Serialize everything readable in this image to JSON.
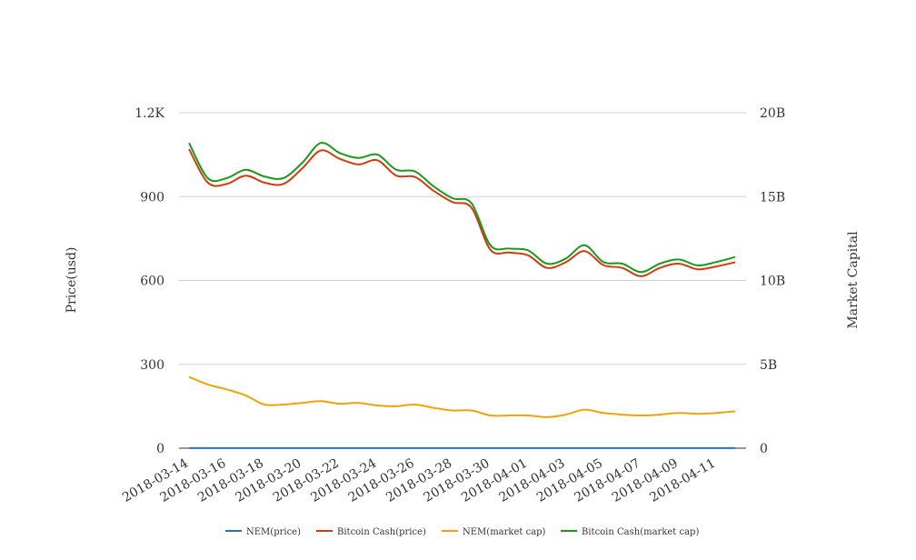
{
  "chart_data": {
    "type": "line",
    "title": "",
    "x": [
      "2018-03-14",
      "2018-03-15",
      "2018-03-16",
      "2018-03-17",
      "2018-03-18",
      "2018-03-19",
      "2018-03-20",
      "2018-03-21",
      "2018-03-22",
      "2018-03-23",
      "2018-03-24",
      "2018-03-25",
      "2018-03-26",
      "2018-03-27",
      "2018-03-28",
      "2018-03-29",
      "2018-03-30",
      "2018-03-31",
      "2018-04-01",
      "2018-04-02",
      "2018-04-03",
      "2018-04-04",
      "2018-04-05",
      "2018-04-06",
      "2018-04-07",
      "2018-04-08",
      "2018-04-09",
      "2018-04-10",
      "2018-04-11",
      "2018-04-12"
    ],
    "x_tick_labels": [
      "2018-03-14",
      "2018-03-16",
      "2018-03-18",
      "2018-03-20",
      "2018-03-22",
      "2018-03-24",
      "2018-03-26",
      "2018-03-28",
      "2018-03-30",
      "2018-04-01",
      "2018-04-03",
      "2018-04-05",
      "2018-04-07",
      "2018-04-09",
      "2018-04-11"
    ],
    "y_left": {
      "label": "Price(usd)",
      "range": [
        0,
        1200
      ],
      "ticks": [
        0,
        300,
        600,
        900,
        1200
      ],
      "tick_labels": [
        "0",
        "300",
        "600",
        "900",
        "1.2K"
      ]
    },
    "y_right": {
      "label": "Market Capital",
      "range": [
        0,
        20000000000
      ],
      "ticks": [
        0,
        5000000000,
        10000000000,
        15000000000,
        20000000000
      ],
      "tick_labels": [
        "0",
        "5B",
        "10B",
        "15B",
        "20B"
      ]
    },
    "grid": true,
    "legend_position": "bottom",
    "series": [
      {
        "name": "NEM(price)",
        "axis": "left",
        "color": "#2f6fb5",
        "values": [
          0.39,
          0.37,
          0.36,
          0.35,
          0.33,
          0.3,
          0.31,
          0.32,
          0.31,
          0.3,
          0.29,
          0.29,
          0.3,
          0.28,
          0.27,
          0.27,
          0.23,
          0.23,
          0.23,
          0.22,
          0.24,
          0.28,
          0.25,
          0.24,
          0.24,
          0.24,
          0.25,
          0.25,
          0.25,
          0.26
        ]
      },
      {
        "name": "Bitcoin Cash(price)",
        "axis": "left",
        "color": "#d13b12",
        "values": [
          1070,
          950,
          945,
          975,
          950,
          945,
          1000,
          1065,
          1035,
          1015,
          1030,
          975,
          970,
          920,
          880,
          860,
          710,
          700,
          690,
          645,
          665,
          705,
          655,
          645,
          615,
          645,
          660,
          640,
          650,
          665
        ]
      },
      {
        "name": "NEM(market cap)",
        "axis": "right",
        "color": "#f0a30a",
        "values": [
          4250000000,
          3800000000,
          3500000000,
          3150000000,
          2600000000,
          2600000000,
          2700000000,
          2800000000,
          2650000000,
          2700000000,
          2550000000,
          2500000000,
          2600000000,
          2400000000,
          2250000000,
          2250000000,
          1950000000,
          1950000000,
          1950000000,
          1850000000,
          2000000000,
          2300000000,
          2100000000,
          2000000000,
          1950000000,
          2000000000,
          2100000000,
          2050000000,
          2100000000,
          2200000000
        ]
      },
      {
        "name": "Bitcoin Cash(market cap)",
        "axis": "right",
        "color": "#1a9a1a",
        "values": [
          18200000000,
          16100000000,
          16100000000,
          16600000000,
          16200000000,
          16100000000,
          17000000000,
          18200000000,
          17600000000,
          17300000000,
          17500000000,
          16600000000,
          16500000000,
          15600000000,
          14900000000,
          14600000000,
          12100000000,
          11900000000,
          11800000000,
          11000000000,
          11300000000,
          12100000000,
          11100000000,
          11000000000,
          10500000000,
          11000000000,
          11250000000,
          10900000000,
          11100000000,
          11400000000
        ]
      }
    ]
  }
}
